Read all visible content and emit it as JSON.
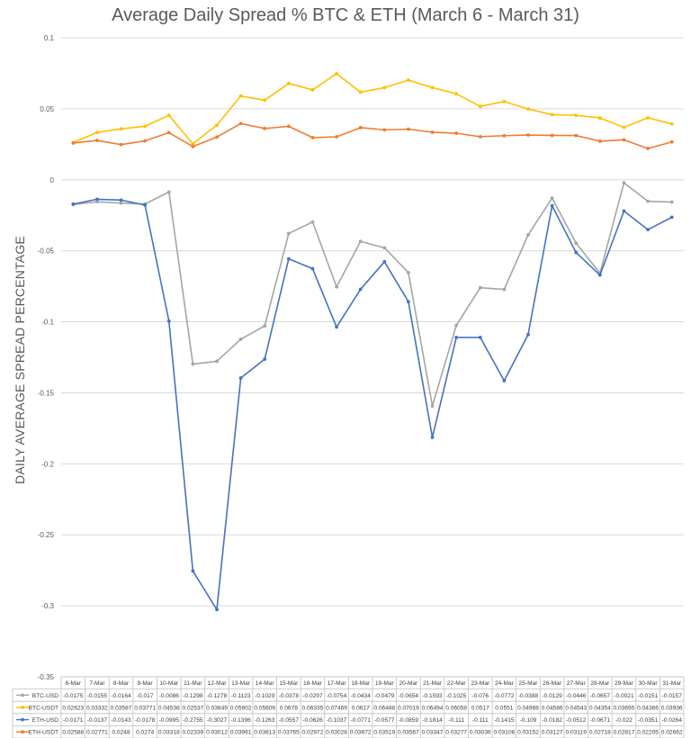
{
  "chart_data": {
    "type": "line",
    "title": "Average Daily Spread % BTC & ETH (March 6 - March 31)",
    "ylabel": "DAILY AVERAGE SPREAD PERCENTAGE",
    "xlabel": "",
    "ylim": [
      -0.35,
      0.1
    ],
    "ytick_values": [
      0.1,
      0.05,
      0,
      -0.05,
      -0.1,
      -0.15,
      -0.2,
      -0.25,
      -0.3,
      -0.35
    ],
    "ytick_labels": [
      "0.1",
      "0.05",
      "0",
      "-0.05",
      "-0.1",
      "-0.15",
      "-0.2",
      "-0.25",
      "-0.3",
      "-0.35"
    ],
    "grid": true,
    "legend_placement": "data table below chart",
    "categories": [
      "6-Mar",
      "7-Mar",
      "8-Mar",
      "9-Mar",
      "10-Mar",
      "11-Mar",
      "12-Mar",
      "13-Mar",
      "14-Mar",
      "15-Mar",
      "16-Mar",
      "17-Mar",
      "18-Mar",
      "19-Mar",
      "20-Mar",
      "21-Mar",
      "22-Mar",
      "23-Mar",
      "24-Mar",
      "25-Mar",
      "26-Mar",
      "27-Mar",
      "28-Mar",
      "29-Mar",
      "30-Mar",
      "31-Mar"
    ],
    "series": [
      {
        "name": "BTC-USD",
        "color": "#a5a5a5",
        "values": [
          -0.0175,
          -0.0155,
          -0.0164,
          -0.017,
          -0.0086,
          -0.1298,
          -0.1278,
          -0.1123,
          -0.1029,
          -0.0378,
          -0.0297,
          -0.0754,
          -0.0434,
          -0.0479,
          -0.0654,
          -0.1593,
          -0.1025,
          -0.076,
          -0.0772,
          -0.0388,
          -0.0129,
          -0.0446,
          -0.0657,
          -0.0021,
          -0.0151,
          -0.0157
        ],
        "labels": [
          "-0.0175",
          "-0.0155",
          "-0.0164",
          "-0.017",
          "-0.0086",
          "-0.1298",
          "-0.1278",
          "-0.1123",
          "-0.1029",
          "-0.0378",
          "-0.0297",
          "-0.0754",
          "-0.0434",
          "-0.0479",
          "-0.0654",
          "-0.1593",
          "-0.1025",
          "-0.076",
          "-0.0772",
          "-0.0388",
          "-0.0129",
          "-0.0446",
          "-0.0657",
          "-0.0021",
          "-0.0151",
          "-0.0157"
        ]
      },
      {
        "name": "BTC-USDT",
        "color": "#ffc000",
        "values": [
          0.02623,
          0.03332,
          0.03587,
          0.03771,
          0.04538,
          0.02537,
          0.03849,
          0.05902,
          0.05606,
          0.0678,
          0.06335,
          0.07469,
          0.0617,
          0.06488,
          0.07019,
          0.06494,
          0.06058,
          0.0517,
          0.0551,
          0.04988,
          0.04586,
          0.04543,
          0.04354,
          0.03695,
          0.04366,
          0.03936
        ],
        "labels": [
          "0.02623",
          "0.03332",
          "0.03587",
          "0.03771",
          "0.04538",
          "0.02537",
          "0.03849",
          "0.05902",
          "0.05606",
          "0.0678",
          "0.06335",
          "0.07469",
          "0.0617",
          "0.06488",
          "0.07019",
          "0.06494",
          "0.06058",
          "0.0517",
          "0.0551",
          "0.04988",
          "0.04586",
          "0.04543",
          "0.04354",
          "0.03695",
          "0.04366",
          "0.03936"
        ]
      },
      {
        "name": "ETH-USD",
        "color": "#4472c4",
        "values": [
          -0.0171,
          -0.0137,
          -0.0143,
          -0.0178,
          -0.0995,
          -0.2755,
          -0.3027,
          -0.1396,
          -0.1263,
          -0.0557,
          -0.0626,
          -0.1037,
          -0.0771,
          -0.0577,
          -0.0859,
          -0.1814,
          -0.111,
          -0.111,
          -0.1415,
          -0.109,
          -0.0182,
          -0.0512,
          -0.0671,
          -0.022,
          -0.0351,
          -0.0264
        ],
        "labels": [
          "-0.0171",
          "-0.0137",
          "-0.0143",
          "-0.0178",
          "-0.0995",
          "-0.2755",
          "-0.3027",
          "-0.1396",
          "-0.1263",
          "-0.0557",
          "-0.0626",
          "-0.1037",
          "-0.0771",
          "-0.0577",
          "-0.0859",
          "-0.1814",
          "-0.111",
          "-0.111",
          "-0.1415",
          "-0.109",
          "-0.0182",
          "-0.0512",
          "-0.0671",
          "-0.022",
          "-0.0351",
          "-0.0264"
        ]
      },
      {
        "name": "ETH-USDT",
        "color": "#ed7d31",
        "values": [
          0.02588,
          0.02771,
          0.0248,
          0.0274,
          0.03318,
          0.02339,
          0.03012,
          0.03961,
          0.03613,
          0.03765,
          0.02972,
          0.03028,
          0.03672,
          0.03519,
          0.03567,
          0.03347,
          0.03277,
          0.03036,
          0.03108,
          0.03152,
          0.03127,
          0.03119,
          0.02718,
          0.02817,
          0.02205,
          0.02662
        ],
        "labels": [
          "0.02588",
          "0.02771",
          "0.0248",
          "0.0274",
          "0.03318",
          "0.02339",
          "0.03012",
          "0.03961",
          "0.03613",
          "0.03765",
          "0.02972",
          "0.03028",
          "0.03672",
          "0.03519",
          "0.03567",
          "0.03347",
          "0.03277",
          "0.03036",
          "0.03108",
          "0.03152",
          "0.03127",
          "0.03119",
          "0.02718",
          "0.02817",
          "0.02205",
          "0.02662"
        ]
      }
    ]
  }
}
